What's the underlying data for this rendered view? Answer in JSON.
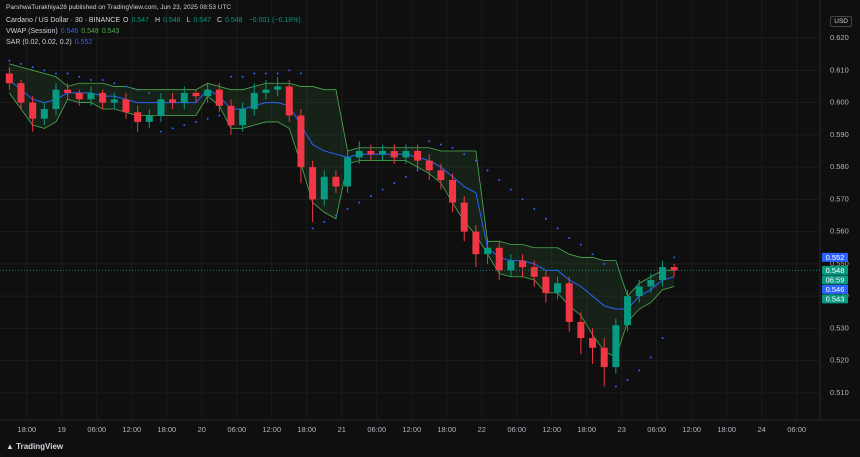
{
  "header": {
    "publisher": "ParshwaTurakhiya28 published on TradingView.com, Jun 23, 2025 08:53 UTC",
    "currency": "USD",
    "brand": "TradingView"
  },
  "chart_data": {
    "type": "candlestick",
    "title": "Cardano / US Dollar · 30 · BINANCE",
    "ohlc": [
      {
        "key": "O",
        "value": 0.547
      },
      {
        "key": "H",
        "value": 0.548
      },
      {
        "key": "L",
        "value": 0.547
      },
      {
        "key": "C",
        "value": 0.548
      }
    ],
    "change": "−0.001 (−0.18%)",
    "indicators": [
      {
        "name": "VWAP (Session)",
        "values": [
          {
            "value": 0.546,
            "color": "#2962ff"
          },
          {
            "value": 0.548,
            "color": "#4caf50"
          },
          {
            "value": 0.543,
            "color": "#4caf50"
          }
        ]
      },
      {
        "name": "SAR (0.02, 0.02, 0.2)",
        "values": [
          {
            "value": 0.552,
            "color": "#2962ff"
          }
        ]
      }
    ],
    "up_color": "#089981",
    "down_color": "#f23645",
    "x": [
      -3,
      -1,
      1,
      3,
      5,
      7,
      9,
      11,
      13,
      15,
      17,
      19,
      21,
      23,
      25,
      27,
      29,
      31,
      33,
      35,
      37,
      39,
      41,
      43,
      45,
      47,
      49,
      51,
      53,
      55,
      57,
      59,
      61,
      63,
      65,
      67,
      69,
      71,
      73,
      75,
      77,
      79,
      81,
      83,
      85,
      87,
      89,
      91,
      93,
      95,
      97,
      99,
      101,
      103,
      105,
      107,
      109,
      111
    ],
    "open": [
      0.609,
      0.606,
      0.6,
      0.595,
      0.598,
      0.604,
      0.603,
      0.601,
      0.603,
      0.6,
      0.601,
      0.597,
      0.594,
      0.596,
      0.601,
      0.6,
      0.603,
      0.602,
      0.604,
      0.599,
      0.593,
      0.598,
      0.603,
      0.604,
      0.605,
      0.596,
      0.58,
      0.57,
      0.577,
      0.574,
      0.583,
      0.585,
      0.584,
      0.585,
      0.583,
      0.585,
      0.582,
      0.579,
      0.576,
      0.569,
      0.56,
      0.553,
      0.555,
      0.548,
      0.551,
      0.549,
      0.546,
      0.541,
      0.544,
      0.532,
      0.527,
      0.524,
      0.518,
      0.531,
      0.54,
      0.543,
      0.545,
      0.549
    ],
    "high": [
      0.611,
      0.607,
      0.602,
      0.6,
      0.606,
      0.606,
      0.604,
      0.605,
      0.604,
      0.603,
      0.603,
      0.599,
      0.598,
      0.603,
      0.603,
      0.605,
      0.604,
      0.606,
      0.606,
      0.601,
      0.6,
      0.606,
      0.607,
      0.608,
      0.607,
      0.598,
      0.582,
      0.579,
      0.579,
      0.585,
      0.588,
      0.587,
      0.587,
      0.587,
      0.587,
      0.587,
      0.584,
      0.581,
      0.578,
      0.571,
      0.562,
      0.558,
      0.557,
      0.553,
      0.553,
      0.551,
      0.548,
      0.546,
      0.546,
      0.535,
      0.53,
      0.527,
      0.533,
      0.542,
      0.545,
      0.547,
      0.551,
      0.55
    ],
    "low": [
      0.604,
      0.598,
      0.591,
      0.593,
      0.596,
      0.601,
      0.599,
      0.599,
      0.598,
      0.598,
      0.595,
      0.591,
      0.592,
      0.594,
      0.598,
      0.598,
      0.6,
      0.6,
      0.597,
      0.59,
      0.591,
      0.596,
      0.601,
      0.602,
      0.594,
      0.575,
      0.563,
      0.568,
      0.572,
      0.572,
      0.581,
      0.582,
      0.582,
      0.581,
      0.581,
      0.579,
      0.576,
      0.573,
      0.566,
      0.557,
      0.549,
      0.55,
      0.545,
      0.546,
      0.546,
      0.543,
      0.538,
      0.539,
      0.529,
      0.522,
      0.519,
      0.512,
      0.516,
      0.529,
      0.538,
      0.541,
      0.543,
      0.546
    ],
    "close": [
      0.606,
      0.6,
      0.595,
      0.598,
      0.604,
      0.603,
      0.601,
      0.603,
      0.6,
      0.601,
      0.597,
      0.594,
      0.596,
      0.601,
      0.6,
      0.603,
      0.602,
      0.604,
      0.599,
      0.593,
      0.598,
      0.603,
      0.604,
      0.605,
      0.596,
      0.58,
      0.57,
      0.577,
      0.574,
      0.583,
      0.585,
      0.584,
      0.585,
      0.583,
      0.585,
      0.582,
      0.579,
      0.576,
      0.569,
      0.56,
      0.553,
      0.555,
      0.548,
      0.551,
      0.549,
      0.546,
      0.541,
      0.544,
      0.532,
      0.527,
      0.524,
      0.518,
      0.531,
      0.54,
      0.543,
      0.545,
      0.549,
      0.548
    ],
    "vwap": {
      "color": "#2962ff",
      "values": [
        0.607,
        0.604,
        0.601,
        0.6,
        0.601,
        0.603,
        0.603,
        0.603,
        0.602,
        0.602,
        0.601,
        0.6,
        0.6,
        0.6,
        0.6,
        0.6,
        0.6,
        0.604,
        0.602,
        0.598,
        0.598,
        0.599,
        0.6,
        0.6,
        0.599,
        0.593,
        0.587,
        0.585,
        0.584,
        0.583,
        0.584,
        0.584,
        0.584,
        0.584,
        0.584,
        0.583,
        0.582,
        0.58,
        0.577,
        0.574,
        0.572,
        0.555,
        0.552,
        0.551,
        0.551,
        0.55,
        0.548,
        0.548,
        0.545,
        0.543,
        0.54,
        0.537,
        0.536,
        0.536,
        0.54,
        0.542,
        0.545,
        0.546
      ]
    },
    "upper_band": {
      "color": "#4caf50",
      "values": [
        0.612,
        0.611,
        0.61,
        0.609,
        0.608,
        0.605,
        0.606,
        0.606,
        0.606,
        0.605,
        0.605,
        0.604,
        0.604,
        0.604,
        0.604,
        0.604,
        0.604,
        0.606,
        0.605,
        0.604,
        0.604,
        0.605,
        0.606,
        0.606,
        0.606,
        0.605,
        0.605,
        0.604,
        0.604,
        0.585,
        0.586,
        0.586,
        0.586,
        0.586,
        0.586,
        0.586,
        0.586,
        0.585,
        0.585,
        0.585,
        0.585,
        0.557,
        0.557,
        0.556,
        0.556,
        0.555,
        0.555,
        0.555,
        0.553,
        0.552,
        0.552,
        0.551,
        0.551,
        0.54,
        0.544,
        0.546,
        0.548,
        0.548
      ]
    },
    "lower_band": {
      "color": "#4caf50",
      "values": [
        0.603,
        0.598,
        0.593,
        0.592,
        0.594,
        0.601,
        0.6,
        0.6,
        0.598,
        0.598,
        0.597,
        0.596,
        0.596,
        0.596,
        0.596,
        0.596,
        0.596,
        0.602,
        0.599,
        0.592,
        0.592,
        0.593,
        0.594,
        0.594,
        0.592,
        0.581,
        0.569,
        0.566,
        0.564,
        0.581,
        0.582,
        0.582,
        0.582,
        0.582,
        0.582,
        0.58,
        0.578,
        0.575,
        0.569,
        0.563,
        0.559,
        0.553,
        0.547,
        0.546,
        0.546,
        0.545,
        0.541,
        0.541,
        0.537,
        0.534,
        0.528,
        0.523,
        0.521,
        0.532,
        0.536,
        0.538,
        0.542,
        0.543
      ]
    },
    "band_fill": "rgba(76,175,80,0.12)",
    "sar": {
      "color": "#2962ff",
      "values": [
        0.613,
        0.612,
        0.611,
        0.61,
        0.609,
        0.609,
        0.608,
        0.607,
        0.607,
        0.606,
        0.605,
        0.604,
        0.603,
        0.591,
        0.592,
        0.593,
        0.594,
        0.595,
        0.596,
        0.608,
        0.608,
        0.609,
        0.609,
        0.609,
        0.61,
        0.609,
        0.561,
        0.563,
        0.565,
        0.567,
        0.569,
        0.571,
        0.573,
        0.575,
        0.577,
        0.579,
        0.588,
        0.587,
        0.586,
        0.584,
        0.582,
        0.579,
        0.576,
        0.573,
        0.57,
        0.567,
        0.564,
        0.561,
        0.558,
        0.556,
        0.553,
        0.55,
        0.512,
        0.514,
        0.517,
        0.521,
        0.527,
        0.552
      ]
    },
    "price_tags": [
      {
        "value": 0.552,
        "color": "#2962ff"
      },
      {
        "value": 0.548,
        "color": "#089981",
        "countdown": "06:59"
      },
      {
        "value": 0.546,
        "color": "#2962ff"
      },
      {
        "value": 0.543,
        "color": "#089981"
      }
    ],
    "xlim": [
      -4.6,
      136
    ],
    "xticks": [
      {
        "value": 0,
        "label": "18:00"
      },
      {
        "value": 6,
        "label": "19"
      },
      {
        "value": 12,
        "label": "06:00"
      },
      {
        "value": 18,
        "label": "12:00"
      },
      {
        "value": 24,
        "label": "18:00"
      },
      {
        "value": 30,
        "label": "20"
      },
      {
        "value": 36,
        "label": "06:00"
      },
      {
        "value": 42,
        "label": "12:00"
      },
      {
        "value": 48,
        "label": "18:00"
      },
      {
        "value": 54,
        "label": "21"
      },
      {
        "value": 60,
        "label": "06:00"
      },
      {
        "value": 66,
        "label": "12:00"
      },
      {
        "value": 72,
        "label": "18:00"
      },
      {
        "value": 78,
        "label": "22"
      },
      {
        "value": 84,
        "label": "06:00"
      },
      {
        "value": 90,
        "label": "12:00"
      },
      {
        "value": 96,
        "label": "18:00"
      },
      {
        "value": 102,
        "label": "23"
      },
      {
        "value": 108,
        "label": "06:00"
      },
      {
        "value": 114,
        "label": "12:00"
      },
      {
        "value": 120,
        "label": "18:00"
      },
      {
        "value": 126,
        "label": "24"
      },
      {
        "value": 132,
        "label": "06:00"
      }
    ],
    "ylim": [
      0.5016,
      0.6318
    ],
    "yticks": [
      {
        "value": 0.51,
        "label": "0.510"
      },
      {
        "value": 0.52,
        "label": "0.520"
      },
      {
        "value": 0.53,
        "label": "0.530"
      },
      {
        "value": 0.54,
        "label": "0.540"
      },
      {
        "value": 0.55,
        "label": "0.550"
      },
      {
        "value": 0.56,
        "label": "0.560"
      },
      {
        "value": 0.57,
        "label": "0.570"
      },
      {
        "value": 0.58,
        "label": "0.580"
      },
      {
        "value": 0.59,
        "label": "0.590"
      },
      {
        "value": 0.6,
        "label": "0.600"
      },
      {
        "value": 0.61,
        "label": "0.610"
      },
      {
        "value": 0.62,
        "label": "0.620"
      }
    ],
    "grid": true
  }
}
